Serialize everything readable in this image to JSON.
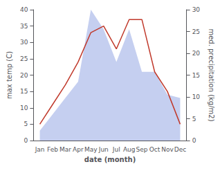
{
  "chart_data": {
    "type": "line",
    "categories": [
      "Jan",
      "Feb",
      "Mar",
      "Apr",
      "May",
      "Jun",
      "Jul",
      "Aug",
      "Sep",
      "Oct",
      "Nov",
      "Dec"
    ],
    "xlabel": "date (month)",
    "ylabel": "max temp (C)",
    "y2label": "med. precipitation (kg/m2)",
    "series": [
      {
        "type": "area",
        "color": "#c5cff0",
        "values": [
          3,
          8,
          13,
          18,
          40,
          34,
          24,
          34,
          21,
          21,
          14,
          13
        ]
      },
      {
        "type": "line",
        "color": "#c0392b",
        "values": [
          5,
          11,
          17,
          24,
          33,
          35,
          28,
          37,
          37,
          21,
          15,
          5
        ]
      }
    ],
    "ylim": [
      0,
      40
    ],
    "yticks": [
      0,
      5,
      10,
      15,
      20,
      25,
      30,
      35,
      40
    ],
    "y2lim": [
      0,
      30
    ],
    "y2ticks": [
      0,
      5,
      10,
      15,
      20,
      25,
      30
    ],
    "grid": false
  }
}
